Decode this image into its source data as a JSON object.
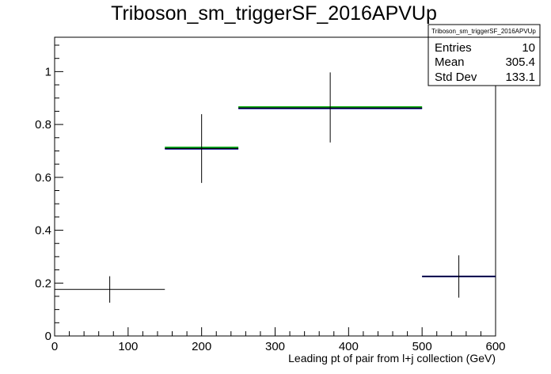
{
  "chart_data": {
    "type": "histogram",
    "title": "Triboson_sm_triggerSF_2016APVUp",
    "xlabel": "Leading pt of pair from l+j collection (GeV)",
    "ylabel": "",
    "xlim": [
      0,
      600
    ],
    "ylim": [
      0,
      1.13
    ],
    "x_ticks": [
      0,
      100,
      200,
      300,
      400,
      500,
      600
    ],
    "y_ticks": [
      0,
      0.2,
      0.4,
      0.6,
      0.8,
      1
    ],
    "bins": [
      {
        "xlow": 0,
        "xhigh": 150,
        "value": 0.176,
        "err_low": 0.05,
        "err_high": 0.05
      },
      {
        "xlow": 150,
        "xhigh": 250,
        "value": 0.709,
        "err_low": 0.13,
        "err_high": 0.13
      },
      {
        "xlow": 250,
        "xhigh": 500,
        "value": 0.862,
        "err_low": 0.13,
        "err_high": 0.135
      },
      {
        "xlow": 500,
        "xhigh": 600,
        "value": 0.225,
        "err_low": 0.08,
        "err_high": 0.08
      }
    ],
    "overlays": [
      {
        "name": "green",
        "color": "#00aa00",
        "values": [
          null,
          0.713,
          0.866,
          null
        ]
      },
      {
        "name": "blue",
        "color": "#000099",
        "values": [
          null,
          0.708,
          0.861,
          0.225
        ]
      }
    ],
    "stats_box": {
      "title": "Triboson_sm_triggerSF_2016APVUp",
      "rows": [
        {
          "label": "Entries",
          "value": "10"
        },
        {
          "label": "Mean",
          "value": "305.4"
        },
        {
          "label": "Std Dev",
          "value": "133.1"
        }
      ]
    }
  }
}
